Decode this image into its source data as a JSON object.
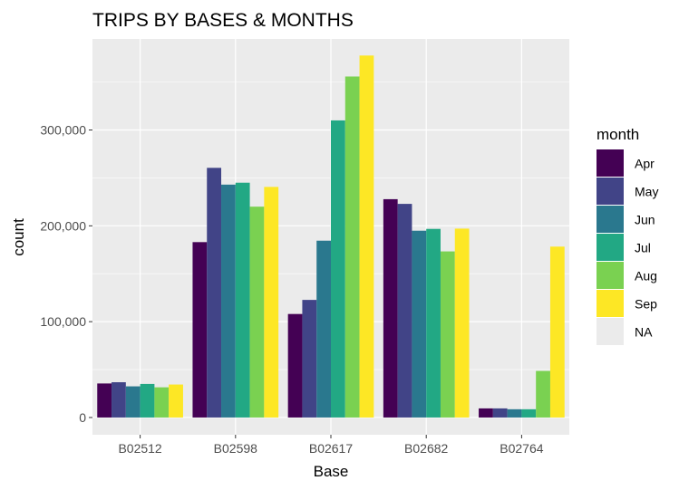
{
  "chart_data": {
    "type": "bar",
    "title": "TRIPS BY BASES & MONTHS",
    "xlabel": "Base",
    "ylabel": "count",
    "categories": [
      "B02512",
      "B02598",
      "B02617",
      "B02682",
      "B02764"
    ],
    "y_ticks": [
      0,
      100000,
      200000,
      300000
    ],
    "y_tick_labels": [
      "0",
      "100,000",
      "200,000",
      "300,000"
    ],
    "ylim": [
      -18000,
      395000
    ],
    "grid": true,
    "legend_title": "month",
    "legend_position": "right",
    "series": [
      {
        "name": "Apr",
        "color": "#440154",
        "values": [
          35500,
          183000,
          108000,
          227800,
          9500
        ]
      },
      {
        "name": "May",
        "color": "#414487",
        "values": [
          36800,
          260500,
          122700,
          222900,
          9500
        ]
      },
      {
        "name": "Jun",
        "color": "#2A788E",
        "values": [
          32500,
          243000,
          184500,
          194900,
          8600
        ]
      },
      {
        "name": "Jul",
        "color": "#22A884",
        "values": [
          35000,
          245000,
          310000,
          196800,
          8600
        ]
      },
      {
        "name": "Aug",
        "color": "#7AD151",
        "values": [
          31500,
          220000,
          355800,
          173300,
          48600
        ]
      },
      {
        "name": "Sep",
        "color": "#FDE725",
        "values": [
          34400,
          240600,
          377700,
          197100,
          178300
        ]
      },
      {
        "name": "NA",
        "color": "#EBEBEB",
        "values": [
          null,
          null,
          null,
          null,
          null
        ]
      }
    ]
  }
}
